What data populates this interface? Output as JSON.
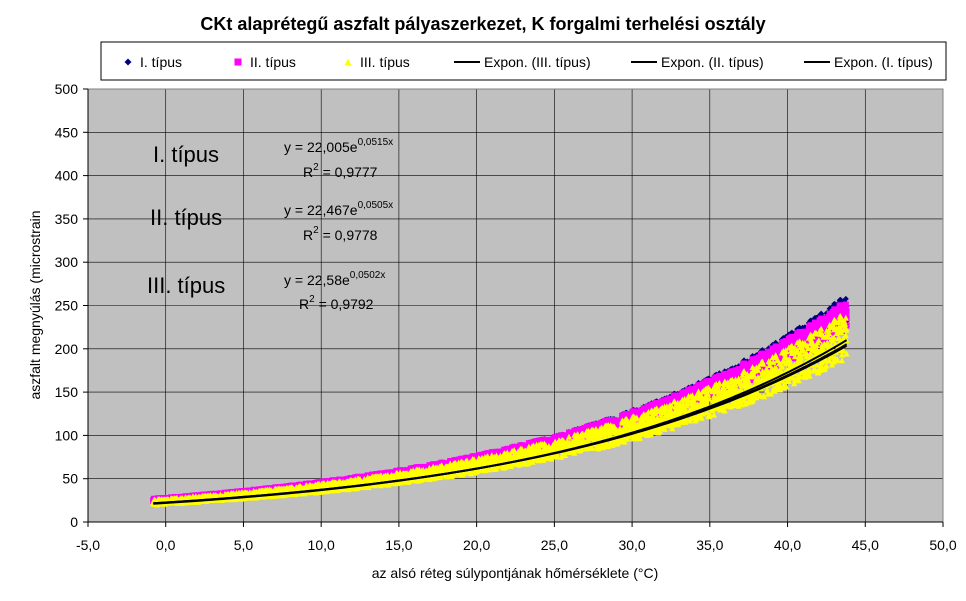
{
  "chart_data": {
    "type": "scatter",
    "title": "CKt alaprétegű aszfalt pályaszerkezet, K forgalmi terhelési osztály",
    "xlabel": "az alsó réteg súlypontjának hőmérséklete (°C)",
    "ylabel": "aszfalt megnyúlás (microstrain",
    "xlim": [
      -5,
      50
    ],
    "ylim": [
      0,
      500
    ],
    "x_ticks": [
      "-5,0",
      "0,0",
      "5,0",
      "10,0",
      "15,0",
      "20,0",
      "25,0",
      "30,0",
      "35,0",
      "40,0",
      "45,0",
      "50,0"
    ],
    "y_ticks": [
      "0",
      "50",
      "100",
      "150",
      "200",
      "250",
      "300",
      "350",
      "400",
      "450",
      "500"
    ],
    "grid": true,
    "legend_position": "top",
    "plot_background": "#c0c0c0",
    "series": [
      {
        "name": "I. típus",
        "marker": "diamond",
        "color": "#000080",
        "x_range": [
          -0.8,
          43.8
        ],
        "upper_coef": [
          27.5,
          0.0515
        ],
        "lower_coef": [
          24.0,
          0.0515
        ]
      },
      {
        "name": "II. típus",
        "marker": "square",
        "color": "#ff00ff",
        "x_range": [
          -0.8,
          43.8
        ],
        "upper_coef": [
          28.0,
          0.0505
        ],
        "lower_coef": [
          24.5,
          0.0505
        ]
      },
      {
        "name": "III. típus",
        "marker": "triangle",
        "color": "#ffff00",
        "x_range": [
          -0.8,
          43.8
        ],
        "upper_coef": [
          27.0,
          0.0502
        ],
        "lower_coef": [
          21.0,
          0.0502
        ]
      }
    ],
    "trendlines": [
      {
        "name": "Expon. (III. típus)",
        "a": 22.58,
        "b": 0.0502,
        "color": "#000000",
        "x_range": [
          -0.8,
          43.8
        ]
      },
      {
        "name": "Expon. (II. típus)",
        "a": 22.467,
        "b": 0.0505,
        "color": "#000000",
        "x_range": [
          -0.8,
          43.8
        ]
      },
      {
        "name": "Expon. (I. típus)",
        "a": 22.005,
        "b": 0.0515,
        "color": "#000000",
        "x_range": [
          -0.8,
          43.8
        ]
      }
    ],
    "annotations": [
      {
        "label": "I. típus",
        "eq_base": "y = 22,005e",
        "eq_exp": "0,0515x",
        "r2_prefix": "R",
        "r2_sup": "2",
        "r2_value": " = 0,9777"
      },
      {
        "label": "II. típus",
        "eq_base": "y = 22,467e",
        "eq_exp": "0,0505x",
        "r2_prefix": "R",
        "r2_sup": "2",
        "r2_value": " = 0,9778"
      },
      {
        "label": "III. típus",
        "eq_base": "y = 22,58e",
        "eq_exp": "0,0502x",
        "r2_prefix": "R",
        "r2_sup": "2",
        "r2_value": " = 0,9792"
      }
    ]
  }
}
